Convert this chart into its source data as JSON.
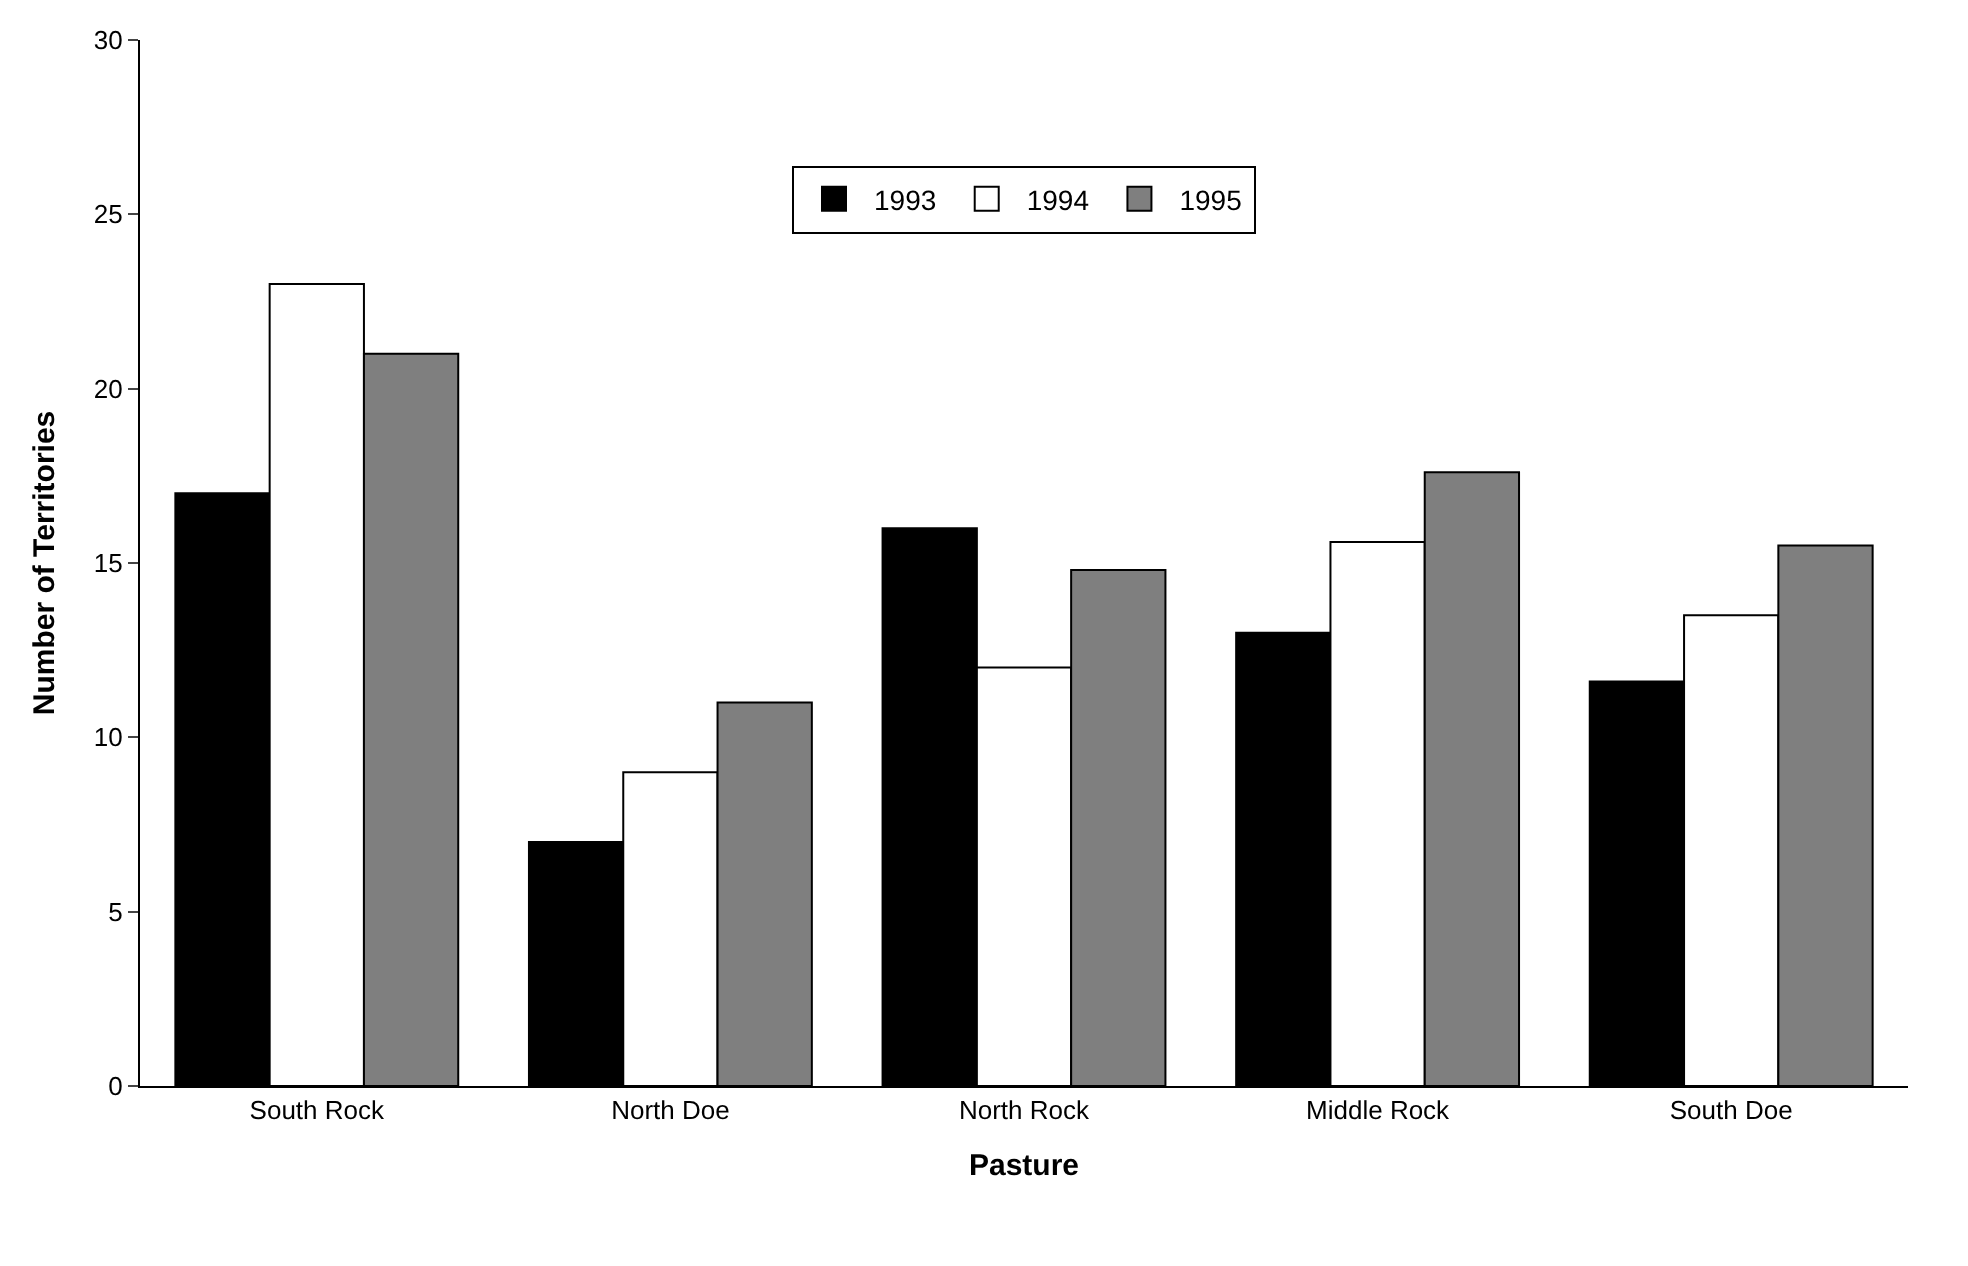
{
  "chart_data": {
    "type": "bar",
    "xlabel": "Pasture",
    "ylabel": "Number of Territories",
    "categories": [
      "South Rock",
      "North Doe",
      "North Rock",
      "Middle Rock",
      "South Doe"
    ],
    "series": [
      {
        "name": "1993",
        "color": "#000000",
        "values": [
          17,
          7,
          16,
          13,
          11.6
        ]
      },
      {
        "name": "1994",
        "color": "#ffffff",
        "values": [
          23,
          9,
          12,
          15.6,
          13.5
        ]
      },
      {
        "name": "1995",
        "color": "#7f7f7f",
        "values": [
          21,
          11,
          14.8,
          17.6,
          15.5
        ]
      }
    ],
    "ylim": [
      0,
      30
    ],
    "yticks": [
      0,
      5,
      10,
      15,
      20,
      25,
      30
    ],
    "legend": "top"
  }
}
